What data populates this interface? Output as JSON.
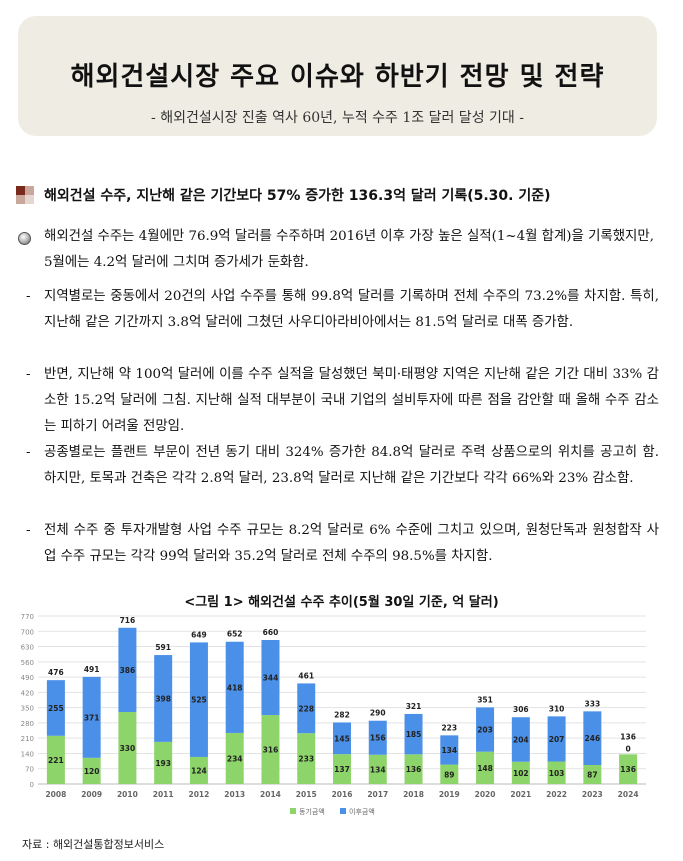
{
  "header": {
    "title": "해외건설시장 주요 이슈와 하반기 전망 및 전략",
    "subtitle": "- 해외건설시장 진출 역사 60년, 누적 수주 1조 달러 달성 기대 -"
  },
  "section": {
    "heading": "해외건설 수주, 지난해 같은 기간보다 57% 증가한 136.3억 달러 기록(5.30. 기준)"
  },
  "body": {
    "main_bullet": "해외건설 수주는 4월에만 76.9억 달러를 수주하며 2016년 이후 가장 높은 실적(1~4월 합계)을 기록했지만, 5월에는 4.2억 달러에 그치며 증가세가 둔화함.",
    "sub_bullets": [
      "지역별로는 중동에서 20건의 사업 수주를 통해 99.8억 달러를 기록하며 전체 수주의 73.2%를 차지함. 특히, 지난해 같은 기간까지 3.8억 달러에 그쳤던 사우디아라비아에서는 81.5억 달러로 대폭 증가함.",
      "반면, 지난해 약 100억 달러에 이를 수주 실적을 달성했던 북미·태평양 지역은 지난해 같은 기간 대비 33% 감소한 15.2억 달러에 그침. 지난해 실적 대부분이 국내 기업의 설비투자에 따른 점을 감안할 때 올해 수주 감소는 피하기 어려울 전망임.",
      "공종별로는 플랜트 부문이 전년 동기 대비 324% 증가한 84.8억 달러로 주력 상품으로의 위치를 공고히 함. 하지만, 토목과 건축은 각각 2.8억 달러, 23.8억 달러로 지난해 같은 기간보다 각각 66%와 23% 감소함.",
      "전체 수주 중 투자개발형 사업 수주 규모는 8.2억 달러로 6% 수준에 그치고 있으며, 원청단독과 원청합작 사업 수주 규모는 각각 99억 달러와 35.2억 달러로 전체 수주의 98.5%를 차지함."
    ],
    "dash": "-"
  },
  "figure": {
    "title": "<그림 1> 해외건설 수주 추이(5월 30일 기준, 억 달러)",
    "source": "자료 : 해외건설통합정보서비스"
  },
  "chart_data": {
    "type": "bar",
    "stacked": true,
    "categories": [
      "2008",
      "2009",
      "2010",
      "2011",
      "2012",
      "2013",
      "2014",
      "2015",
      "2016",
      "2017",
      "2018",
      "2019",
      "2020",
      "2021",
      "2022",
      "2023",
      "2024"
    ],
    "series": [
      {
        "name": "동기금액",
        "color": "#8dd46b",
        "values": [
          221,
          120,
          330,
          193,
          124,
          234,
          316,
          233,
          137,
          134,
          136,
          89,
          148,
          102,
          103,
          87,
          136
        ]
      },
      {
        "name": "이후금액",
        "color": "#4a90e8",
        "values": [
          255,
          371,
          386,
          398,
          525,
          418,
          344,
          228,
          145,
          156,
          185,
          134,
          203,
          204,
          207,
          246,
          0
        ]
      }
    ],
    "totals": [
      476,
      491,
      716,
      591,
      649,
      652,
      660,
      461,
      282,
      290,
      321,
      223,
      351,
      306,
      310,
      333,
      136
    ],
    "yticks": [
      0,
      70,
      140,
      210,
      280,
      350,
      420,
      490,
      560,
      630,
      700,
      770
    ],
    "ylim": [
      0,
      770
    ],
    "grid": true,
    "legend_position": "bottom-center"
  }
}
